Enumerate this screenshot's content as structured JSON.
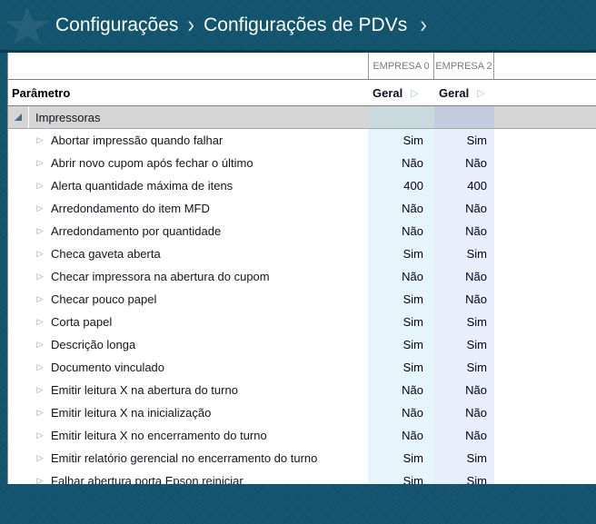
{
  "header": {
    "breadcrumbs": [
      "Configurações",
      "Configurações de PDVs"
    ],
    "separator": "›"
  },
  "icons": {
    "row_expand": "▷",
    "header_expand": "▷"
  },
  "columns": {
    "param_header": "Parâmetro",
    "companies": [
      {
        "name": "EMPRESA 0",
        "view": "Geral"
      },
      {
        "name": "EMPRESA 2",
        "view": "Geral"
      }
    ]
  },
  "group": {
    "label": "Impressoras",
    "expanded": true
  },
  "rows": [
    {
      "label": "Abortar impressão quando falhar",
      "values": [
        "Sim",
        "Sim"
      ]
    },
    {
      "label": "Abrir novo cupom após fechar o último",
      "values": [
        "Não",
        "Não"
      ]
    },
    {
      "label": "Alerta quantidade máxima de itens",
      "values": [
        "400",
        "400"
      ]
    },
    {
      "label": "Arredondamento do item MFD",
      "values": [
        "Não",
        "Não"
      ]
    },
    {
      "label": "Arredondamento por quantidade",
      "values": [
        "Não",
        "Não"
      ]
    },
    {
      "label": "Checa gaveta aberta",
      "values": [
        "Sim",
        "Sim"
      ]
    },
    {
      "label": "Checar impressora na abertura do cupom",
      "values": [
        "Não",
        "Não"
      ]
    },
    {
      "label": "Checar pouco papel",
      "values": [
        "Sim",
        "Não"
      ]
    },
    {
      "label": "Corta papel",
      "values": [
        "Sim",
        "Sim"
      ]
    },
    {
      "label": "Descrição longa",
      "values": [
        "Sim",
        "Sim"
      ]
    },
    {
      "label": "Documento vinculado",
      "values": [
        "Sim",
        "Sim"
      ]
    },
    {
      "label": "Emitir leitura X na abertura do turno",
      "values": [
        "Não",
        "Não"
      ]
    },
    {
      "label": "Emitir leitura X na inicialização",
      "values": [
        "Não",
        "Não"
      ]
    },
    {
      "label": "Emitir leitura X no encerramento do turno",
      "values": [
        "Não",
        "Não"
      ]
    },
    {
      "label": "Emitir relatório gerencial no encerramento do turno",
      "values": [
        "Sim",
        "Sim"
      ]
    },
    {
      "label": "Falhar abertura porta Epson reiniciar",
      "values": [
        "Sim",
        "Sim"
      ]
    }
  ],
  "colors": {
    "header_bg": "#14566f",
    "header_border": "#0a3c52",
    "col_empresa0_tint": "#e6f5fa",
    "col_empresa2_tint": "#e8eefa",
    "group_bg": "#d5d5d5",
    "group_col0_tint": "#c9dadc",
    "group_col2_tint": "#c3cbde"
  }
}
